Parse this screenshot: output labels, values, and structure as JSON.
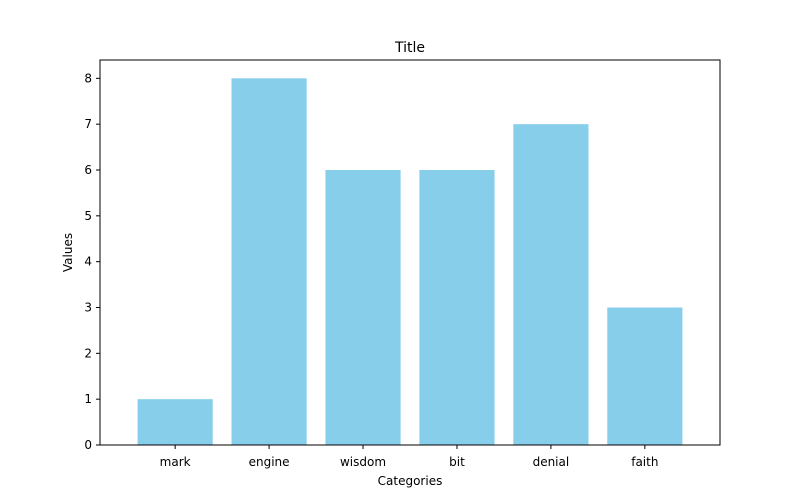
{
  "chart_data": {
    "type": "bar",
    "title": "Title",
    "xlabel": "Categories",
    "ylabel": "Values",
    "categories": [
      "mark",
      "engine",
      "wisdom",
      "bit",
      "denial",
      "faith"
    ],
    "values": [
      1,
      8,
      6,
      6,
      7,
      3
    ],
    "ylim": [
      0,
      8.4
    ],
    "yticks": [
      0,
      1,
      2,
      3,
      4,
      5,
      6,
      7,
      8
    ],
    "bar_color": "#87ceeb",
    "grid": false,
    "legend": false
  }
}
